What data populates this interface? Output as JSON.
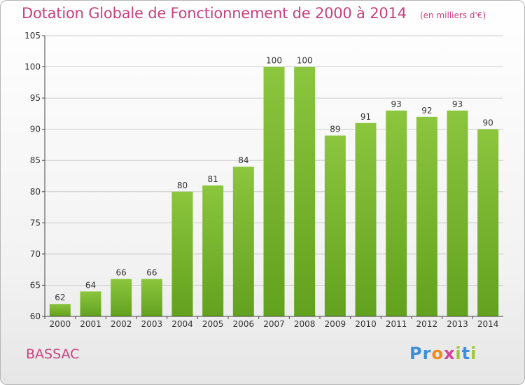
{
  "chart_data": {
    "type": "bar",
    "title": "Dotation Globale de Fonctionnement de 2000 à 2014",
    "subtitle": "(en milliers d'€)",
    "xlabel": "",
    "ylabel": "",
    "categories": [
      "2000",
      "2001",
      "2002",
      "2003",
      "2004",
      "2005",
      "2006",
      "2007",
      "2008",
      "2009",
      "2010",
      "2011",
      "2012",
      "2013",
      "2014"
    ],
    "values": [
      62,
      64,
      66,
      66,
      80,
      81,
      84,
      100,
      100,
      89,
      91,
      93,
      92,
      93,
      90
    ],
    "ylim": [
      60,
      105
    ],
    "yticks": [
      60,
      65,
      70,
      75,
      80,
      85,
      90,
      95,
      100,
      105
    ],
    "grid": true,
    "legend": "none",
    "bar_color": "#8cc53e",
    "bar_color_dark": "#62a11e"
  },
  "place_name": "BASSAC",
  "logo": {
    "parts": [
      "Pr",
      "o",
      "x",
      "i",
      "t",
      "i"
    ],
    "colors": [
      "#3e8fd8",
      "#f08a1c",
      "#d64098",
      "#9bc73a",
      "#3e8fd8",
      "#9bc73a"
    ]
  },
  "colors": {
    "accent": "#c8417d",
    "axis": "#444444",
    "grid": "#cccccc"
  }
}
